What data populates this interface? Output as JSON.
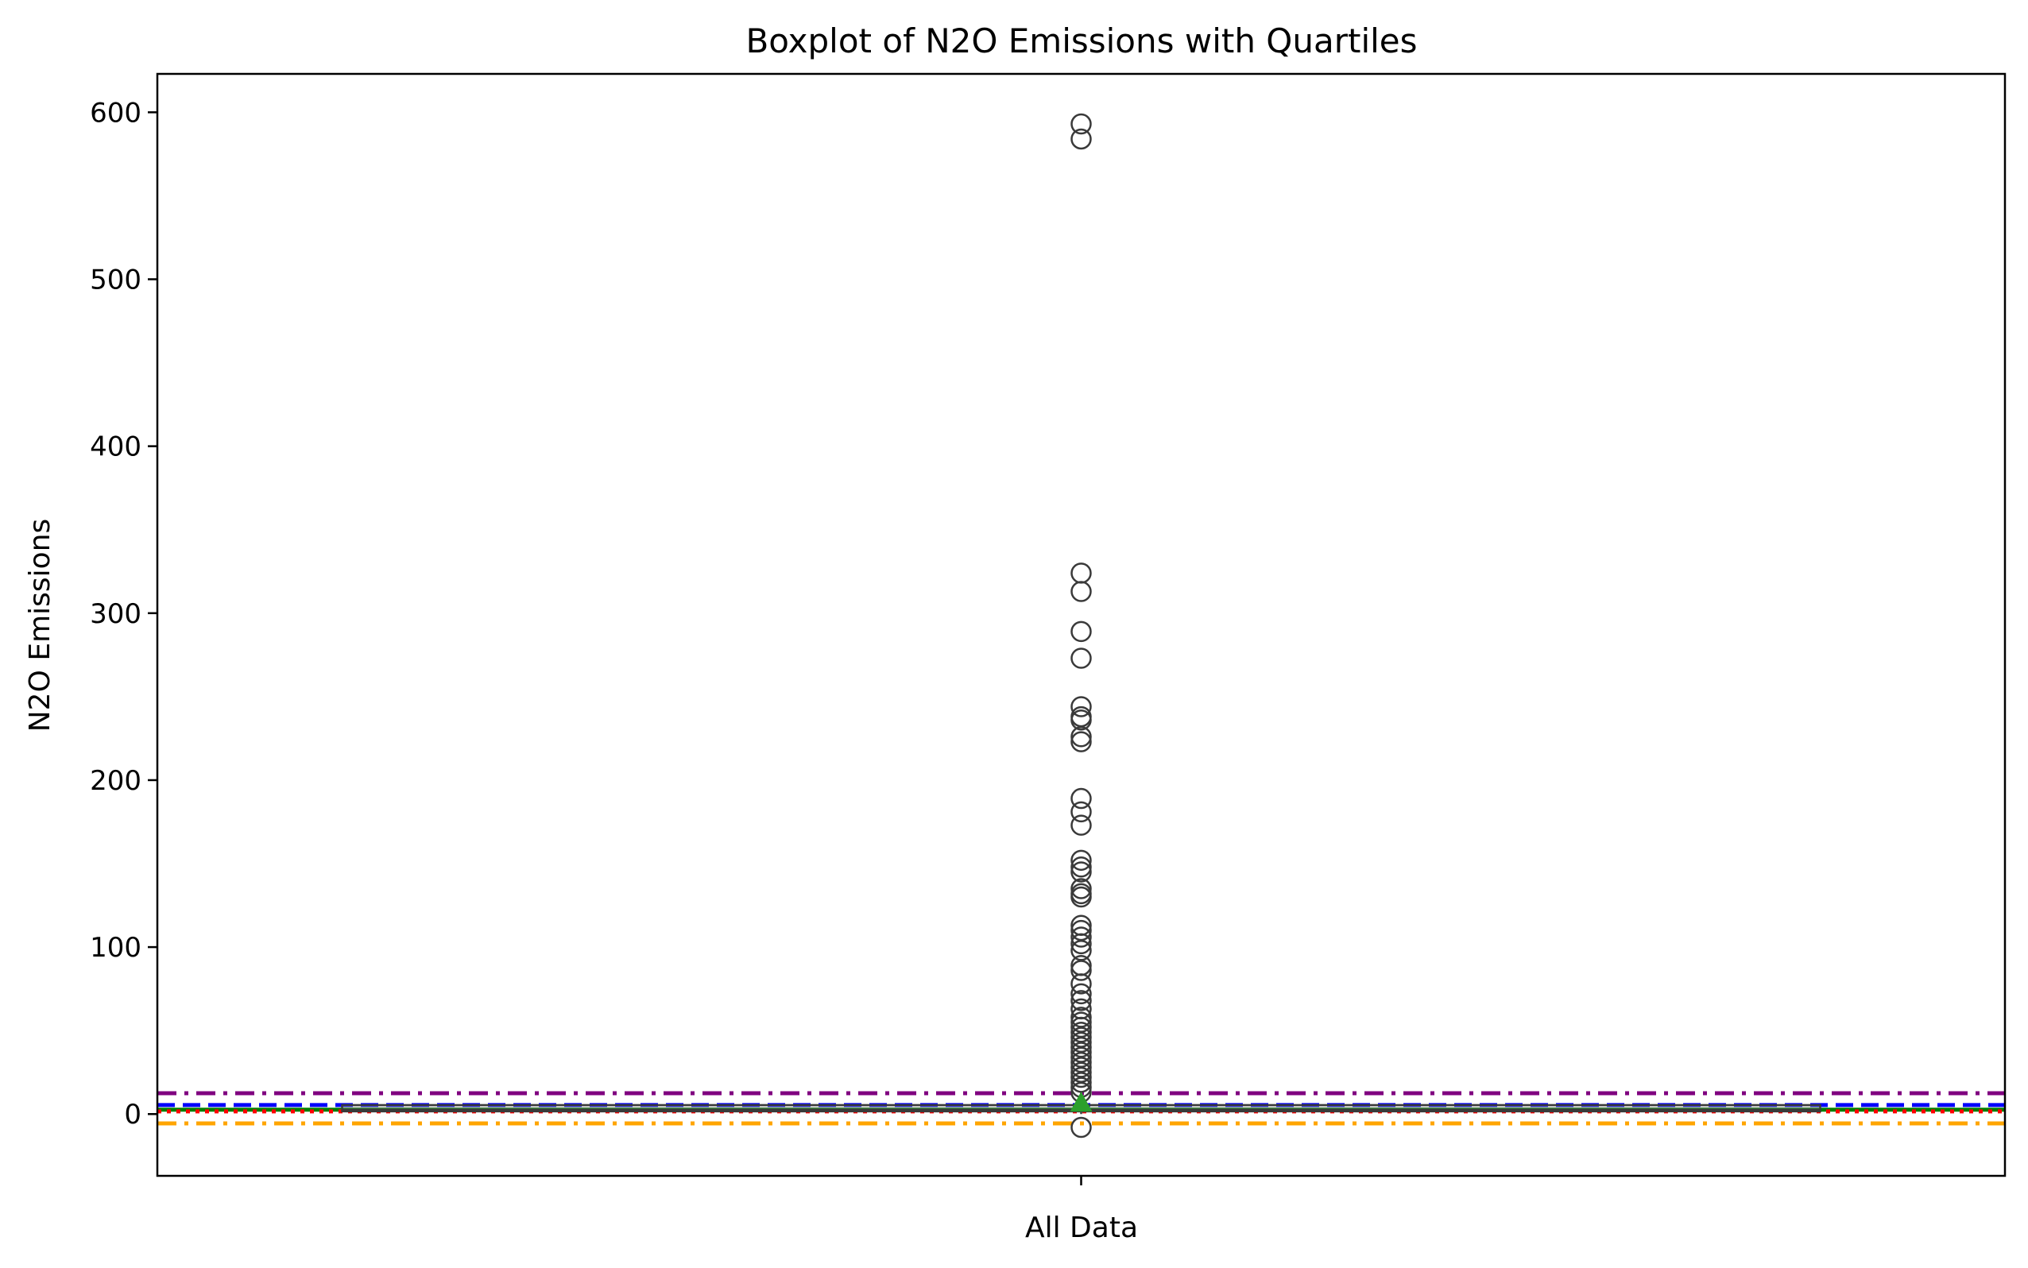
{
  "chart_data": {
    "type": "boxplot",
    "title": "Boxplot of N2O Emissions with Quartiles",
    "xlabel": "",
    "ylabel": "N2O Emissions",
    "categories": [
      "All Data"
    ],
    "ylim": [
      -37,
      623
    ],
    "yticks": [
      0,
      100,
      200,
      300,
      400,
      500,
      600
    ],
    "grid": false,
    "legend": "none",
    "box": {
      "q1": 1.6,
      "median": 2.6,
      "q3": 5.4,
      "whisker_low": 0.0,
      "whisker_high": 11.0,
      "mean": 6.8,
      "color": "#3a3a3a",
      "mean_color": "#2ca02c"
    },
    "outliers": [
      593,
      584,
      324,
      313,
      289,
      273,
      244,
      238,
      236,
      226,
      223,
      189,
      181,
      173,
      152,
      148,
      145,
      135,
      132,
      130,
      113,
      110,
      106,
      102,
      98,
      89,
      86,
      78,
      72,
      68,
      63,
      58,
      55,
      52,
      49,
      46,
      43,
      40,
      37,
      34,
      31,
      28,
      25,
      22,
      19,
      16,
      13,
      -8
    ],
    "reference_lines": [
      {
        "value": 12.5,
        "color": "#800080",
        "style": "dashdot"
      },
      {
        "value": 5.4,
        "color": "#0000ff",
        "style": "dashed"
      },
      {
        "value": 2.6,
        "color": "#008000",
        "style": "solid"
      },
      {
        "value": 1.6,
        "color": "#ff0000",
        "style": "dotted"
      },
      {
        "value": -5.6,
        "color": "#ffa500",
        "style": "dashdot"
      }
    ]
  }
}
